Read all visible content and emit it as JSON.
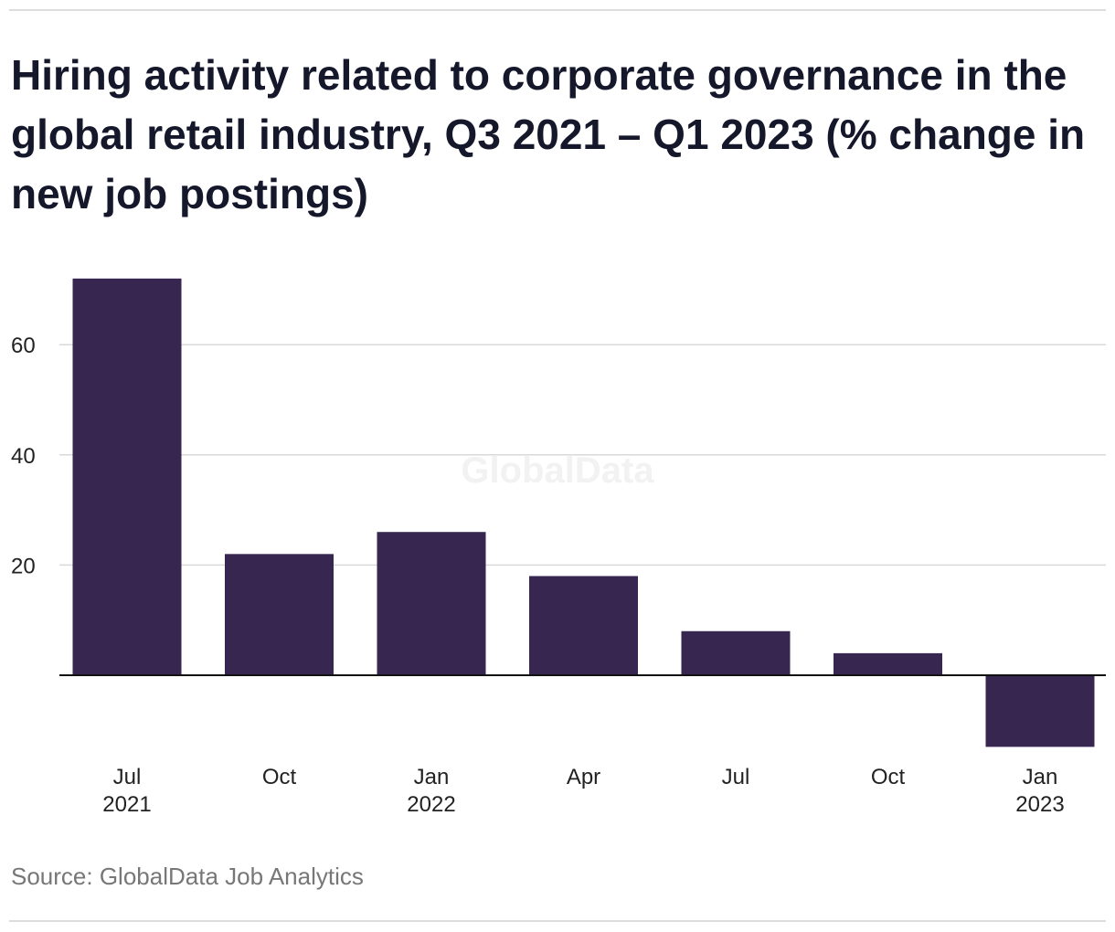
{
  "title": "Hiring activity related to corporate governance in the global retail industry, Q3 2021 – Q1 2023 (% change in new job postings)",
  "source": "Source: GlobalData Job Analytics",
  "watermark": "GlobalData",
  "colors": {
    "bar": "#372650",
    "grid": "#d9d9d9",
    "zero_line": "#111111"
  },
  "chart_data": {
    "type": "bar",
    "categories": [
      [
        "Jul",
        "2021"
      ],
      [
        "Oct",
        ""
      ],
      [
        "Jan",
        "2022"
      ],
      [
        "Apr",
        ""
      ],
      [
        "Jul",
        ""
      ],
      [
        "Oct",
        ""
      ],
      [
        "Jan",
        "2023"
      ]
    ],
    "values": [
      72,
      22,
      26,
      18,
      8,
      4,
      -13
    ],
    "yticks": [
      20,
      40,
      60
    ],
    "ylim": [
      -13,
      72
    ],
    "title": "Hiring activity related to corporate governance in the global retail industry, Q3 2021 – Q1 2023 (% change in new job postings)",
    "xlabel": "",
    "ylabel": "",
    "grid": true
  }
}
